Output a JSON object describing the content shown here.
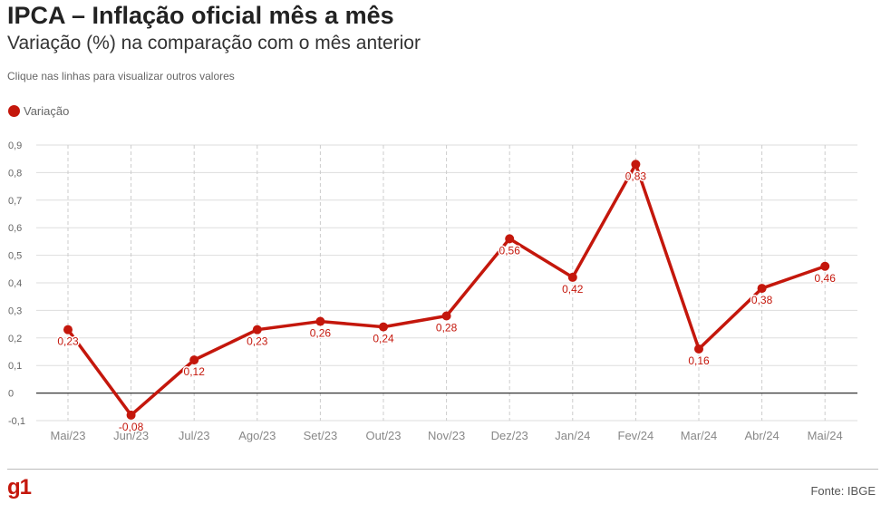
{
  "header": {
    "title": "IPCA – Inflação oficial mês a mês",
    "subtitle": "Variação (%) na comparação com o mês anterior",
    "hint": "Clique nas linhas para visualizar outros valores"
  },
  "legend": {
    "label": "Variação"
  },
  "footer": {
    "logo": "g1",
    "source": "Fonte: IBGE"
  },
  "colors": {
    "series": "#c4170c",
    "logo": "#c4170c",
    "zero_line": "#333333",
    "grid": "#dddddd"
  },
  "chart_data": {
    "type": "line",
    "categories": [
      "Mai/23",
      "Jun/23",
      "Jul/23",
      "Ago/23",
      "Set/23",
      "Out/23",
      "Nov/23",
      "Dez/23",
      "Jan/24",
      "Fev/24",
      "Mar/24",
      "Abr/24",
      "Mai/24"
    ],
    "series": [
      {
        "name": "Variação",
        "values": [
          0.23,
          -0.08,
          0.12,
          0.23,
          0.26,
          0.24,
          0.28,
          0.56,
          0.42,
          0.83,
          0.16,
          0.38,
          0.46
        ],
        "labels": [
          "0,23",
          "-0,08",
          "0,12",
          "0,23",
          "0,26",
          "0,24",
          "0,28",
          "0,56",
          "0,42",
          "0,83",
          "0,16",
          "0,38",
          "0,46"
        ]
      }
    ],
    "ylim": [
      -0.1,
      0.9
    ],
    "yticks": [
      -0.1,
      0,
      0.1,
      0.2,
      0.3,
      0.4,
      0.5,
      0.6,
      0.7,
      0.8,
      0.9
    ],
    "ytick_labels": [
      "-0,1",
      "0",
      "0,1",
      "0,2",
      "0,3",
      "0,4",
      "0,5",
      "0,6",
      "0,7",
      "0,8",
      "0,9"
    ],
    "grid": true,
    "legend_position": "top-left"
  }
}
